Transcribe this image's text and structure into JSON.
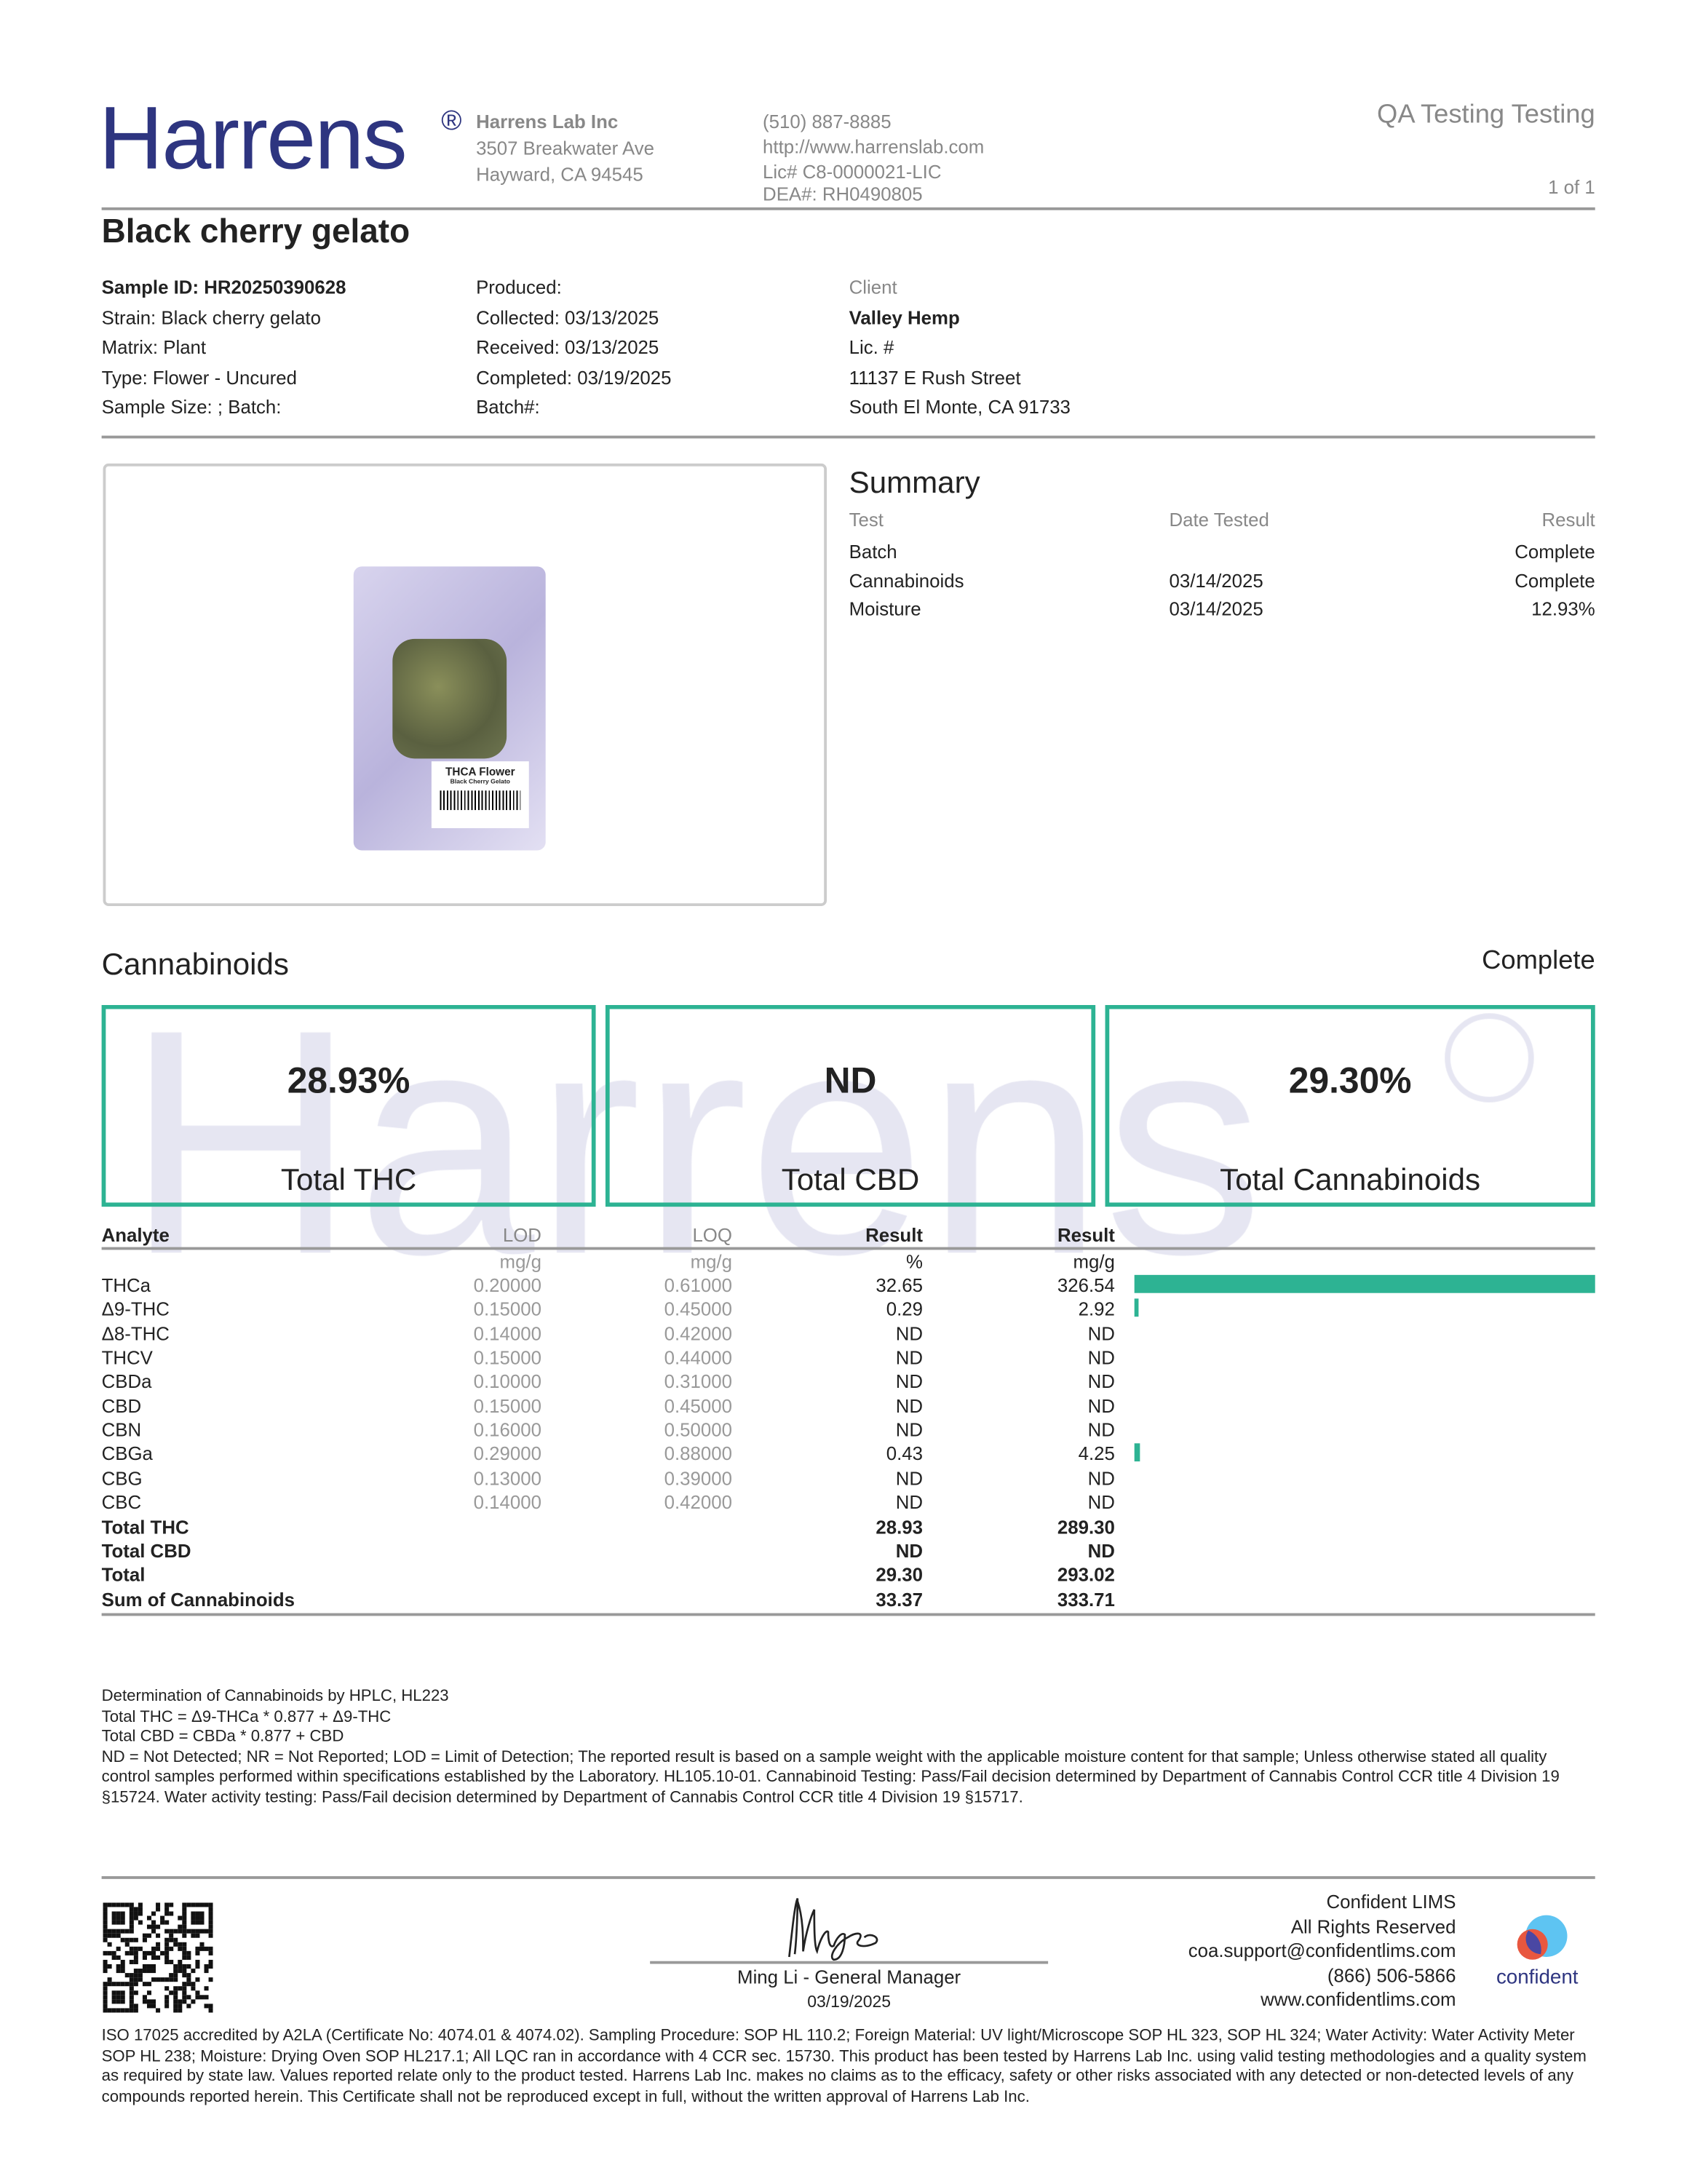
{
  "header": {
    "logo": "Harrens",
    "registered": "®",
    "lab_name": "Harrens Lab Inc",
    "lab_address1": "3507 Breakwater Ave",
    "lab_address2": "Hayward, CA 94545",
    "phone": "(510) 887-8885",
    "website": "http://www.harrenslab.com",
    "license": "Lic# C8-0000021-LIC",
    "dea": "DEA#: RH0490805",
    "report_title": "QA Testing Testing",
    "page": "1 of 1"
  },
  "sample": {
    "name": "Black cherry gelato",
    "col1": [
      "Sample ID: HR20250390628",
      "Strain: Black cherry gelato",
      "Matrix: Plant",
      "Type: Flower - Uncured",
      "Sample Size: ; Batch:"
    ],
    "col2": [
      "Produced:",
      "Collected: 03/13/2025",
      "Received: 03/13/2025",
      "Completed: 03/19/2025",
      "Batch#:"
    ],
    "client_label": "Client",
    "client": [
      "Valley Hemp",
      "Lic. #",
      "11137 E Rush Street",
      "South El Monte, CA 91733"
    ]
  },
  "product_image": {
    "label": "THCA Flower",
    "sublabel": "Black Cherry Gelato"
  },
  "summary": {
    "title": "Summary",
    "headers": [
      "Test",
      "Date Tested",
      "Result"
    ],
    "rows": [
      [
        "Batch",
        "",
        "Complete"
      ],
      [
        "Cannabinoids",
        "03/14/2025",
        "Complete"
      ],
      [
        "Moisture",
        "03/14/2025",
        "12.93%"
      ]
    ]
  },
  "cannabinoids": {
    "title": "Cannabinoids",
    "status": "Complete",
    "watermark": "Harrens",
    "cards": [
      {
        "value": "28.93%",
        "label": "Total THC"
      },
      {
        "value": "ND",
        "label": "Total CBD"
      },
      {
        "value": "29.30%",
        "label": "Total Cannabinoids"
      }
    ],
    "headers": [
      "Analyte",
      "LOD",
      "LOQ",
      "Result",
      "Result"
    ],
    "units": [
      "",
      "mg/g",
      "mg/g",
      "%",
      "mg/g"
    ],
    "accent": "#2db393",
    "rows": [
      {
        "analyte": "THCa",
        "lod": "0.20000",
        "loq": "0.61000",
        "pct": "32.65",
        "mg": "326.54",
        "bar": 326.54
      },
      {
        "analyte": "Δ9-THC",
        "lod": "0.15000",
        "loq": "0.45000",
        "pct": "0.29",
        "mg": "2.92",
        "bar": 2.92
      },
      {
        "analyte": "Δ8-THC",
        "lod": "0.14000",
        "loq": "0.42000",
        "pct": "ND",
        "mg": "ND",
        "bar": 0
      },
      {
        "analyte": "THCV",
        "lod": "0.15000",
        "loq": "0.44000",
        "pct": "ND",
        "mg": "ND",
        "bar": 0
      },
      {
        "analyte": "CBDa",
        "lod": "0.10000",
        "loq": "0.31000",
        "pct": "ND",
        "mg": "ND",
        "bar": 0
      },
      {
        "analyte": "CBD",
        "lod": "0.15000",
        "loq": "0.45000",
        "pct": "ND",
        "mg": "ND",
        "bar": 0
      },
      {
        "analyte": "CBN",
        "lod": "0.16000",
        "loq": "0.50000",
        "pct": "ND",
        "mg": "ND",
        "bar": 0
      },
      {
        "analyte": "CBGa",
        "lod": "0.29000",
        "loq": "0.88000",
        "pct": "0.43",
        "mg": "4.25",
        "bar": 4.25
      },
      {
        "analyte": "CBG",
        "lod": "0.13000",
        "loq": "0.39000",
        "pct": "ND",
        "mg": "ND",
        "bar": 0
      },
      {
        "analyte": "CBC",
        "lod": "0.14000",
        "loq": "0.42000",
        "pct": "ND",
        "mg": "ND",
        "bar": 0
      }
    ],
    "totals": [
      {
        "analyte": "Total THC",
        "pct": "28.93",
        "mg": "289.30"
      },
      {
        "analyte": "Total CBD",
        "pct": "ND",
        "mg": "ND"
      },
      {
        "analyte": "Total",
        "pct": "29.30",
        "mg": "293.02"
      },
      {
        "analyte": "Sum of Cannabinoids",
        "pct": "33.37",
        "mg": "333.71"
      }
    ]
  },
  "notes": [
    "Determination of Cannabinoids by HPLC, HL223",
    "Total THC = Δ9-THCa * 0.877 + Δ9-THC",
    "Total CBD = CBDa * 0.877 + CBD",
    "ND = Not Detected; NR = Not Reported; LOD = Limit of Detection; The reported result is based on a sample weight with the applicable moisture content for that sample; Unless otherwise stated all quality control samples performed within specifications established by the Laboratory. HL105.10-01. Cannabinoid Testing: Pass/Fail decision determined by Department of Cannabis Control CCR title 4 Division 19 §15724. Water activity testing: Pass/Fail decision determined by Department of Cannabis Control CCR title 4 Division 19 §15717."
  ],
  "signature": {
    "name": "Ming Li - General Manager",
    "date": "03/19/2025",
    "handwriting": "Ming Li"
  },
  "vendor": {
    "lines": [
      "Confident LIMS",
      "All Rights Reserved",
      "coa.support@confidentlims.com",
      "(866) 506-5866",
      "www.confidentlims.com"
    ],
    "logo_text": "confident"
  },
  "footer": "ISO 17025 accredited by A2LA (Certificate No: 4074.01 & 4074.02). Sampling Procedure: SOP HL 110.2; Foreign Material: UV light/Microscope SOP HL 323, SOP HL 324; Water Activity: Water Activity Meter SOP HL 238; Moisture: Drying Oven SOP HL217.1; All LQC ran in accordance with 4 CCR sec. 15730. This product has been tested by Harrens Lab Inc. using valid testing methodologies and a quality system as required by state law. Values reported relate only to the product tested. Harrens Lab Inc. makes no claims as to the efficacy, safety or other risks associated with any detected or non-detected levels of any compounds reported herein. This Certificate shall not be reproduced except in full, without the written approval of Harrens Lab Inc."
}
